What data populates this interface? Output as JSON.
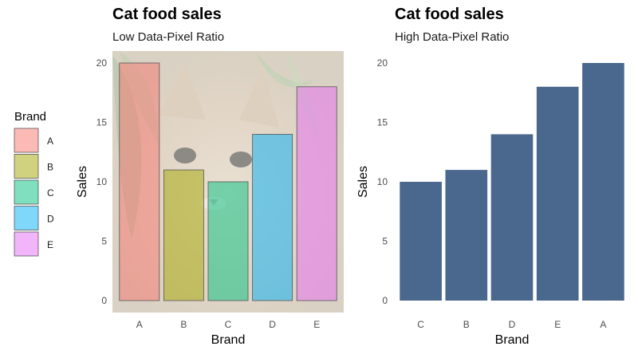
{
  "chart_data": [
    {
      "type": "bar",
      "title": "Cat food sales",
      "subtitle": "Low Data-Pixel Ratio",
      "xlabel": "Brand",
      "ylabel": "Sales",
      "categories": [
        "A",
        "B",
        "C",
        "D",
        "E"
      ],
      "values": [
        20,
        11,
        10,
        14,
        18
      ],
      "colors": [
        "#F8766D",
        "#A3A500",
        "#00BF7D",
        "#00B0F6",
        "#E76BF3"
      ],
      "ylim": [
        0,
        20
      ],
      "yticks": [
        0,
        5,
        10,
        15,
        20
      ],
      "background": "photo of a cat behind leaves",
      "grid": false,
      "legend": {
        "title": "Brand",
        "position": "left",
        "entries": [
          "A",
          "B",
          "C",
          "D",
          "E"
        ]
      }
    },
    {
      "type": "bar",
      "title": "Cat food sales",
      "subtitle": "High Data-Pixel Ratio",
      "xlabel": "Brand",
      "ylabel": "Sales",
      "categories": [
        "C",
        "B",
        "D",
        "E",
        "A"
      ],
      "values": [
        10,
        11,
        14,
        18,
        20
      ],
      "color": "#4A678E",
      "ylim": [
        0,
        20
      ],
      "yticks": [
        0,
        5,
        10,
        15,
        20
      ],
      "grid": false,
      "legend": null
    }
  ]
}
